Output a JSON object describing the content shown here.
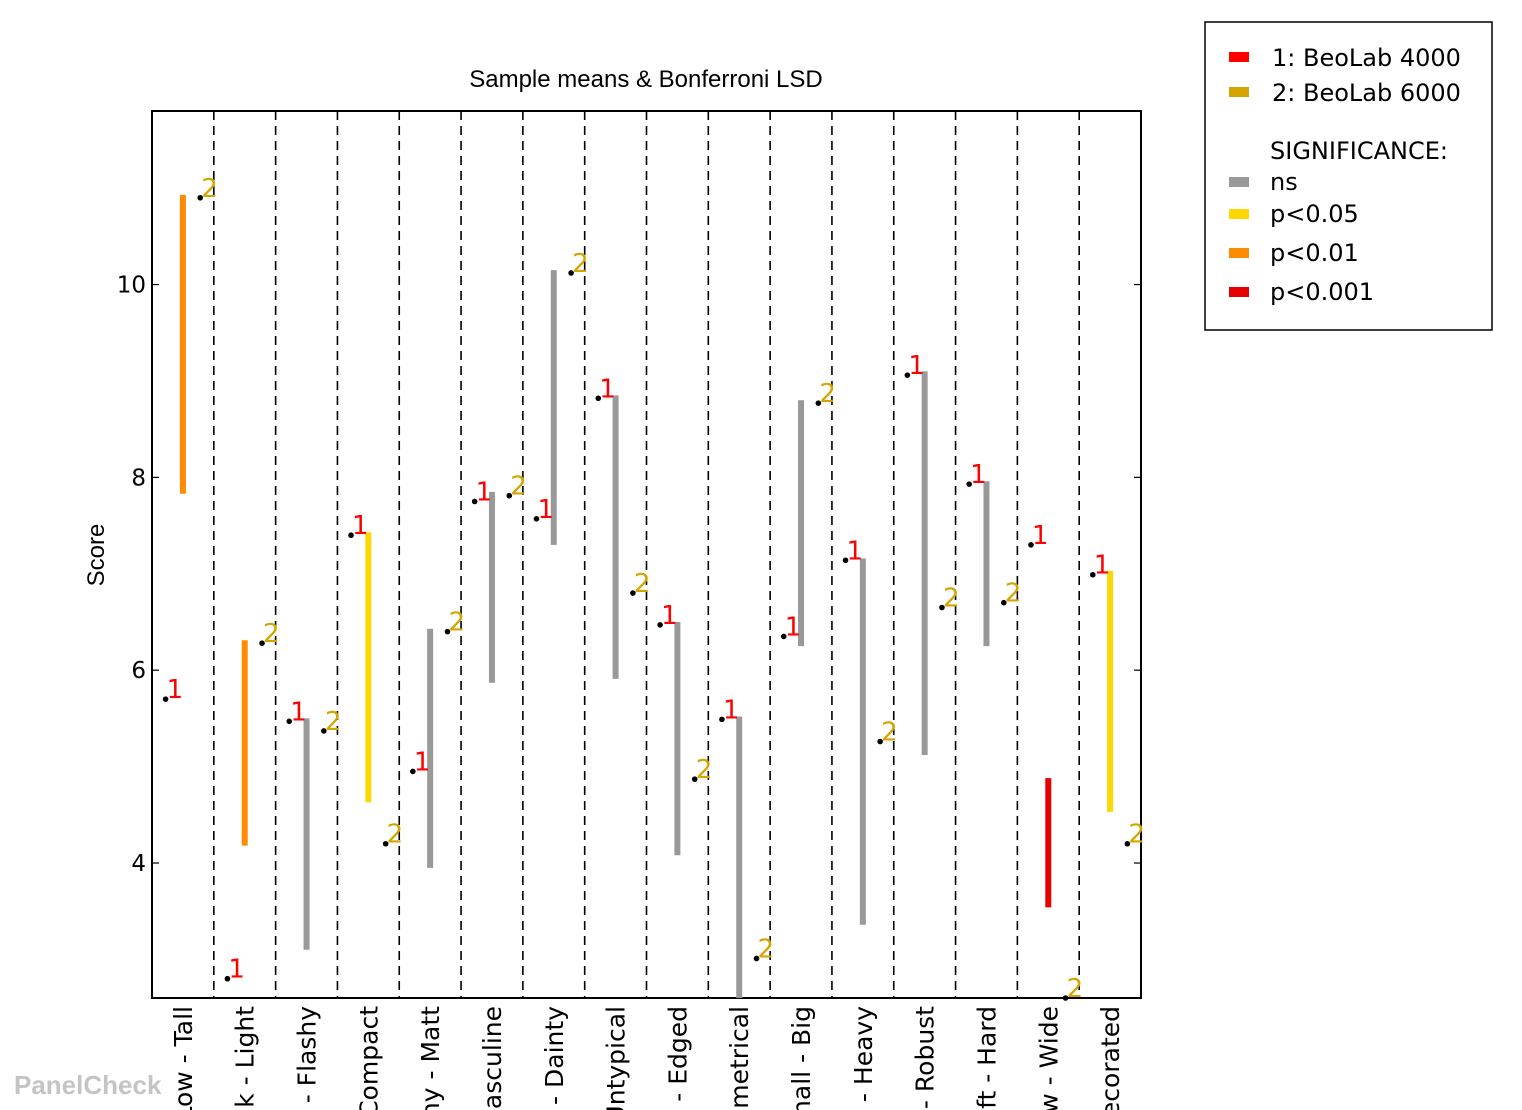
{
  "watermark": "PanelCheck",
  "chart_data": {
    "type": "line",
    "title": "Sample means & Bonferroni LSD",
    "ylabel": "Score",
    "xlabel": "",
    "ylim": [
      2.6,
      11.8
    ],
    "yticks": [
      4,
      6,
      8,
      10
    ],
    "attributes": [
      "Low - Tall",
      "Dark - Light",
      "Discreet - Flashy",
      "Bulky - Compact",
      "Shiny - Matt",
      "Feminine - Masculine",
      "Crude - Dainty",
      "Typical - Untypical",
      "Rounded - Edged",
      "Asymmetrical - Symmetrical",
      "Small - Big",
      "Light - Heavy",
      "Fragile - Robust",
      "Soft - Hard",
      "Narrow - Wide",
      "Plain - Decorated"
    ],
    "attribute_tick_labels": [
      "Low - Tall",
      "k - Light",
      "- Flashy",
      "Compact",
      "ny - Matt",
      "asculine",
      "- Dainty",
      "Untypical",
      "- Edged",
      "metrical",
      "nall - Big",
      "- Heavy",
      "- Robust",
      "ft - Hard",
      "w - Wide",
      "ecorated"
    ],
    "series": [
      {
        "name": "1: BeoLab 4000",
        "marker": "1",
        "values": [
          5.7,
          2.8,
          5.47,
          7.4,
          4.95,
          7.75,
          7.57,
          8.82,
          6.47,
          5.49,
          6.35,
          7.14,
          9.06,
          7.93,
          7.3,
          6.99
        ]
      },
      {
        "name": "2: BeoLab 6000",
        "marker": "2",
        "values": [
          10.9,
          6.28,
          5.37,
          4.2,
          6.4,
          7.81,
          10.12,
          6.8,
          4.87,
          3.01,
          8.77,
          5.26,
          6.65,
          6.7,
          2.6,
          4.2
        ]
      }
    ],
    "lsd_bars": [
      {
        "low": 7.83,
        "high": 10.93,
        "significance": "p<0.01"
      },
      {
        "low": 4.18,
        "high": 6.31,
        "significance": "p<0.01"
      },
      {
        "low": 3.1,
        "high": 5.5,
        "significance": "ns"
      },
      {
        "low": 4.63,
        "high": 7.43,
        "significance": "p<0.05"
      },
      {
        "low": 3.95,
        "high": 6.43,
        "significance": "ns"
      },
      {
        "low": 5.87,
        "high": 7.85,
        "significance": "ns"
      },
      {
        "low": 7.3,
        "high": 10.15,
        "significance": "ns"
      },
      {
        "low": 5.91,
        "high": 8.85,
        "significance": "ns"
      },
      {
        "low": 4.08,
        "high": 6.5,
        "significance": "ns"
      },
      {
        "low": 2.6,
        "high": 5.52,
        "significance": "ns"
      },
      {
        "low": 6.25,
        "high": 8.8,
        "significance": "ns"
      },
      {
        "low": 3.36,
        "high": 7.16,
        "significance": "ns"
      },
      {
        "low": 5.12,
        "high": 9.1,
        "significance": "ns"
      },
      {
        "low": 6.25,
        "high": 7.96,
        "significance": "ns"
      },
      {
        "low": 3.54,
        "high": 4.88,
        "significance": "p<0.001"
      },
      {
        "low": 4.53,
        "high": 7.03,
        "significance": "p<0.05"
      }
    ],
    "grid": false,
    "legend": {
      "position": "top-right",
      "series_entries": [
        {
          "label": "1: BeoLab 4000",
          "color": "#ff0000"
        },
        {
          "label": "2: BeoLab 6000",
          "color": "#d4a500"
        }
      ],
      "significance_title": "SIGNIFICANCE:",
      "significance_entries": [
        {
          "label": "ns",
          "color": "#999999"
        },
        {
          "label": "p<0.05",
          "color": "#ffd700"
        },
        {
          "label": "p<0.01",
          "color": "#ff8c00"
        },
        {
          "label": "p<0.001",
          "color": "#e60000"
        }
      ]
    },
    "colors": {
      "series1": "#ff0000",
      "series2": "#d4a500",
      "ns": "#999999",
      "p<0.05": "#ffd700",
      "p<0.01": "#ff8c00",
      "p<0.001": "#e60000"
    }
  }
}
